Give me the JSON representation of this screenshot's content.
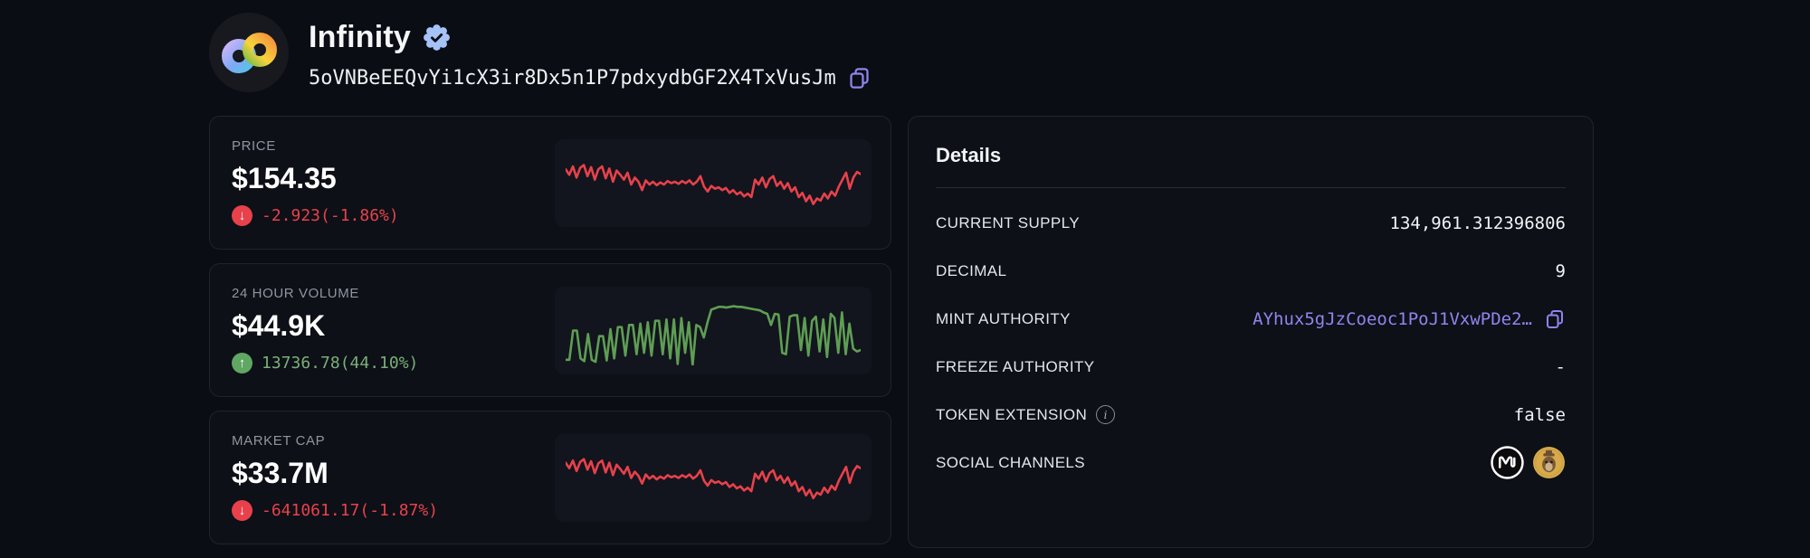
{
  "header": {
    "title": "Infinity",
    "verified_badge": "verified-check-seal",
    "address": "5oVNBeEEQvYi1cX3ir8Dx5n1P7pdxydbGF2X4TxVusJm",
    "copy_icon": "copy-icon"
  },
  "stats_cards": [
    {
      "label": "PRICE",
      "value": "$154.35",
      "change": "-2.923(-1.86%)",
      "direction": "down",
      "change_color": "#e8414b"
    },
    {
      "label": "24 HOUR VOLUME",
      "value": "$44.9K",
      "change": "13736.78(44.10%)",
      "direction": "up",
      "change_color": "#79b078"
    },
    {
      "label": "MARKET CAP",
      "value": "$33.7M",
      "change": "-641061.17(-1.87%)",
      "direction": "down",
      "change_color": "#e8414b"
    }
  ],
  "details": {
    "title": "Details",
    "rows": [
      {
        "label": "CURRENT SUPPLY",
        "value": "134,961.312396806"
      },
      {
        "label": "DECIMAL",
        "value": "9"
      },
      {
        "label": "MINT AUTHORITY",
        "value": "AYhux5gJzCoeoc1PoJ1VxwPDe2…"
      },
      {
        "label": "FREEZE AUTHORITY",
        "value": "-"
      },
      {
        "label": "TOKEN EXTENSION",
        "value": "false"
      },
      {
        "label": "SOCIAL CHANNELS",
        "value": ""
      }
    ],
    "social_icons": [
      "coinmarketcap-icon",
      "gold-mascot-coin-icon"
    ]
  },
  "chart_data": [
    {
      "type": "line",
      "name": "price-sparkline",
      "series_label": "PRICE",
      "color": "#e8414b",
      "ylim": [
        0,
        100
      ],
      "values": [
        70,
        62,
        74,
        58,
        72,
        76,
        60,
        73,
        55,
        70,
        74,
        57,
        71,
        52,
        68,
        62,
        55,
        65,
        48,
        58,
        52,
        40,
        54,
        48,
        52,
        47,
        51,
        48,
        53,
        50,
        52,
        49,
        53,
        50,
        54,
        48,
        52,
        60,
        45,
        38,
        46,
        42,
        44,
        40,
        43,
        36,
        40,
        34,
        37,
        31,
        35,
        30,
        55,
        48,
        58,
        44,
        56,
        60,
        46,
        52,
        42,
        50,
        38,
        44,
        30,
        36,
        24,
        32,
        20,
        28,
        25,
        35,
        28,
        38,
        32,
        45,
        55,
        65,
        42,
        58,
        66,
        63
      ]
    },
    {
      "type": "line",
      "name": "volume-sparkline",
      "series_label": "24 HOUR VOLUME",
      "color": "#5f9e54",
      "ylim": [
        0,
        100
      ],
      "values": [
        8,
        8,
        50,
        50,
        10,
        6,
        45,
        8,
        5,
        42,
        42,
        7,
        52,
        10,
        55,
        55,
        14,
        58,
        58,
        16,
        60,
        18,
        62,
        14,
        64,
        64,
        16,
        66,
        10,
        66,
        2,
        68,
        18,
        62,
        0,
        58,
        55,
        40,
        62,
        80,
        82,
        84,
        84,
        83,
        84,
        85,
        84,
        84,
        83,
        82,
        81,
        80,
        79,
        76,
        74,
        58,
        74,
        73,
        18,
        16,
        70,
        72,
        72,
        22,
        68,
        14,
        64,
        70,
        20,
        66,
        12,
        74,
        68,
        18,
        76,
        16,
        60,
        24,
        20,
        22
      ]
    },
    {
      "type": "line",
      "name": "marketcap-sparkline",
      "series_label": "MARKET CAP",
      "color": "#e8414b",
      "ylim": [
        0,
        100
      ],
      "values": [
        72,
        64,
        75,
        60,
        73,
        77,
        62,
        74,
        57,
        71,
        75,
        58,
        72,
        54,
        69,
        63,
        56,
        66,
        50,
        59,
        53,
        42,
        55,
        49,
        53,
        48,
        52,
        49,
        54,
        51,
        53,
        50,
        54,
        51,
        55,
        49,
        53,
        61,
        46,
        39,
        47,
        43,
        45,
        41,
        44,
        37,
        41,
        35,
        38,
        32,
        36,
        31,
        56,
        49,
        59,
        45,
        57,
        61,
        47,
        53,
        43,
        51,
        39,
        45,
        31,
        37,
        25,
        33,
        21,
        29,
        26,
        36,
        29,
        39,
        33,
        46,
        56,
        66,
        43,
        59,
        67,
        64
      ]
    }
  ],
  "colors": {
    "bg": "#0a0d13",
    "card_bg": "#0d1017",
    "card_border": "#1e2430",
    "panel_bg": "#12151d",
    "label_gray": "#8f95a0",
    "text": "#eef0f4",
    "link": "#9184ee",
    "negative": "#e8414b",
    "positive": "#5fa763",
    "positive_text": "#79b078",
    "badge_blue": "#a6c3f8",
    "divider": "#272c38"
  }
}
